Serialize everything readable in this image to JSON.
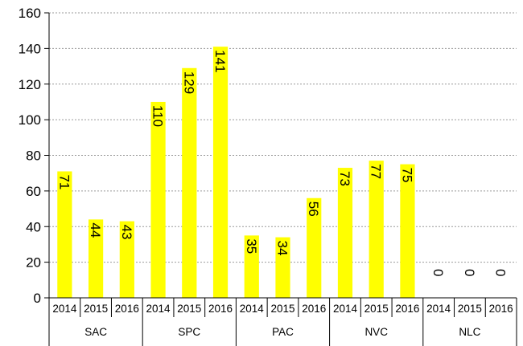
{
  "chart_data": {
    "type": "bar",
    "title": "",
    "xlabel": "",
    "ylabel": "",
    "ylim": [
      0,
      160
    ],
    "yticks": [
      0,
      20,
      40,
      60,
      80,
      100,
      120,
      140,
      160
    ],
    "grid": true,
    "bar_color": "#ffff00",
    "groups": [
      {
        "name": "SAC",
        "years": [
          "2014",
          "2015",
          "2016"
        ],
        "values": [
          71,
          44,
          43
        ]
      },
      {
        "name": "SPC",
        "years": [
          "2014",
          "2015",
          "2016"
        ],
        "values": [
          110,
          129,
          141
        ]
      },
      {
        "name": "PAC",
        "years": [
          "2014",
          "2015",
          "2016"
        ],
        "values": [
          35,
          34,
          56
        ]
      },
      {
        "name": "NVC",
        "years": [
          "2014",
          "2015",
          "2016"
        ],
        "values": [
          73,
          77,
          75
        ]
      },
      {
        "name": "NLC",
        "years": [
          "2014",
          "2015",
          "2016"
        ],
        "values": [
          0,
          0,
          0
        ]
      }
    ]
  }
}
